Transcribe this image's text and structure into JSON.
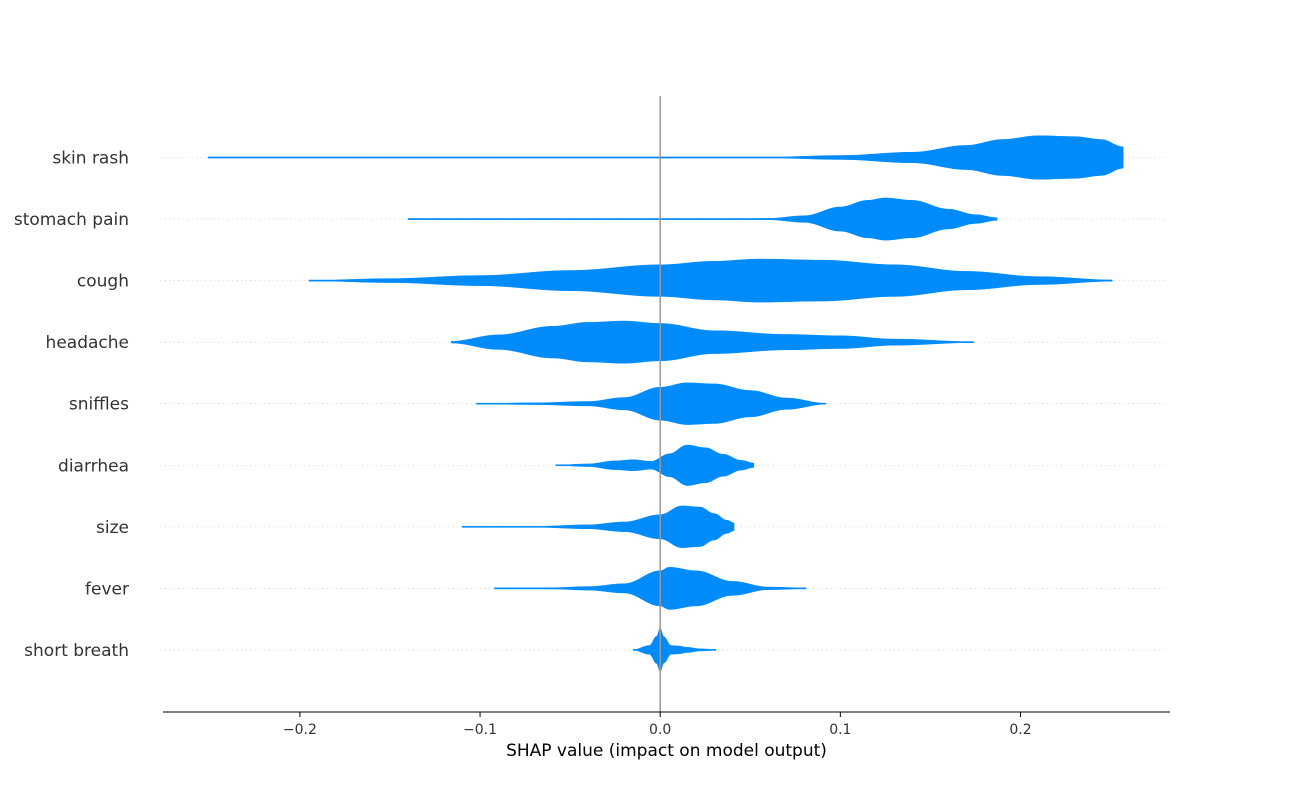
{
  "chart_data": {
    "type": "violin",
    "xlabel": "SHAP value (impact on model output)",
    "ylabel": "",
    "xlim": [
      -0.276,
      0.283
    ],
    "xticks": [
      -0.2,
      -0.1,
      0.0,
      0.1,
      0.2
    ],
    "xtick_labels": [
      "−0.2",
      "−0.1",
      "0.0",
      "0.1",
      "0.2"
    ],
    "grid": "horizontal dotted per feature",
    "zero_line": true,
    "color": "#008bfb",
    "features": [
      {
        "name": "skin rash",
        "min": -0.251,
        "max": 0.257,
        "density": [
          [
            -0.251,
            0.002
          ],
          [
            -0.2,
            0.001
          ],
          [
            -0.15,
            0.0005
          ],
          [
            -0.1,
            0.0003
          ],
          [
            0.0,
            0.0003
          ],
          [
            0.03,
            0.0008
          ],
          [
            0.06,
            0.02
          ],
          [
            0.1,
            0.09
          ],
          [
            0.14,
            0.24
          ],
          [
            0.17,
            0.55
          ],
          [
            0.19,
            0.82
          ],
          [
            0.21,
            0.99
          ],
          [
            0.23,
            0.95
          ],
          [
            0.245,
            0.82
          ],
          [
            0.257,
            0.48
          ]
        ]
      },
      {
        "name": "stomach pain",
        "min": -0.14,
        "max": 0.187,
        "density": [
          [
            -0.14,
            0.002
          ],
          [
            -0.08,
            0.002
          ],
          [
            -0.02,
            0.002
          ],
          [
            0.03,
            0.004
          ],
          [
            0.06,
            0.03
          ],
          [
            0.08,
            0.15
          ],
          [
            0.1,
            0.55
          ],
          [
            0.115,
            0.85
          ],
          [
            0.125,
            0.96
          ],
          [
            0.14,
            0.85
          ],
          [
            0.16,
            0.45
          ],
          [
            0.175,
            0.2
          ],
          [
            0.187,
            0.06
          ]
        ]
      },
      {
        "name": "cough",
        "min": -0.195,
        "max": 0.251,
        "density": [
          [
            -0.195,
            0.01
          ],
          [
            -0.15,
            0.09
          ],
          [
            -0.1,
            0.23
          ],
          [
            -0.05,
            0.46
          ],
          [
            0.0,
            0.72
          ],
          [
            0.03,
            0.88
          ],
          [
            0.055,
            0.98
          ],
          [
            0.09,
            0.93
          ],
          [
            0.13,
            0.72
          ],
          [
            0.17,
            0.42
          ],
          [
            0.21,
            0.18
          ],
          [
            0.251,
            0.03
          ]
        ]
      },
      {
        "name": "headache",
        "min": -0.116,
        "max": 0.174,
        "density": [
          [
            -0.116,
            0.04
          ],
          [
            -0.09,
            0.33
          ],
          [
            -0.06,
            0.72
          ],
          [
            -0.04,
            0.9
          ],
          [
            -0.02,
            0.96
          ],
          [
            0.0,
            0.85
          ],
          [
            0.03,
            0.52
          ],
          [
            0.07,
            0.35
          ],
          [
            0.1,
            0.29
          ],
          [
            0.13,
            0.14
          ],
          [
            0.174,
            0.02
          ]
        ]
      },
      {
        "name": "sniffles",
        "min": -0.102,
        "max": 0.092,
        "density": [
          [
            -0.102,
            0.01
          ],
          [
            -0.07,
            0.04
          ],
          [
            -0.04,
            0.1
          ],
          [
            -0.02,
            0.28
          ],
          [
            0.0,
            0.75
          ],
          [
            0.015,
            0.95
          ],
          [
            0.03,
            0.9
          ],
          [
            0.05,
            0.6
          ],
          [
            0.07,
            0.26
          ],
          [
            0.092,
            0.02
          ]
        ]
      },
      {
        "name": "diarrhea",
        "min": -0.058,
        "max": 0.052,
        "density": [
          [
            -0.058,
            0.01
          ],
          [
            -0.04,
            0.06
          ],
          [
            -0.025,
            0.2
          ],
          [
            -0.015,
            0.25
          ],
          [
            -0.005,
            0.18
          ],
          [
            0.005,
            0.52
          ],
          [
            0.015,
            0.92
          ],
          [
            0.025,
            0.8
          ],
          [
            0.035,
            0.5
          ],
          [
            0.045,
            0.22
          ],
          [
            0.052,
            0.1
          ]
        ]
      },
      {
        "name": "size",
        "min": -0.11,
        "max": 0.041,
        "density": [
          [
            -0.11,
            0.005
          ],
          [
            -0.07,
            0.02
          ],
          [
            -0.04,
            0.09
          ],
          [
            -0.02,
            0.22
          ],
          [
            0.0,
            0.55
          ],
          [
            0.012,
            0.95
          ],
          [
            0.022,
            0.9
          ],
          [
            0.03,
            0.6
          ],
          [
            0.037,
            0.3
          ],
          [
            0.041,
            0.18
          ]
        ]
      },
      {
        "name": "fever",
        "min": -0.092,
        "max": 0.081,
        "density": [
          [
            -0.092,
            0.01
          ],
          [
            -0.06,
            0.03
          ],
          [
            -0.04,
            0.08
          ],
          [
            -0.02,
            0.21
          ],
          [
            0.0,
            0.8
          ],
          [
            0.005,
            0.96
          ],
          [
            0.02,
            0.8
          ],
          [
            0.04,
            0.32
          ],
          [
            0.06,
            0.06
          ],
          [
            0.081,
            0.02
          ]
        ]
      },
      {
        "name": "short breath",
        "min": -0.015,
        "max": 0.031,
        "density": [
          [
            -0.015,
            0.01
          ],
          [
            -0.006,
            0.2
          ],
          [
            -0.002,
            0.62
          ],
          [
            0.0,
            0.98
          ],
          [
            0.002,
            0.6
          ],
          [
            0.006,
            0.2
          ],
          [
            0.01,
            0.18
          ],
          [
            0.015,
            0.12
          ],
          [
            0.022,
            0.05
          ],
          [
            0.031,
            0.02
          ]
        ]
      }
    ]
  }
}
